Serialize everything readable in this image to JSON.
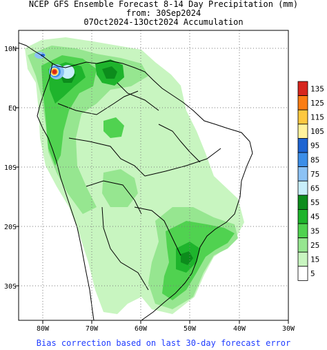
{
  "title": {
    "line1": "NCEP GFS Ensemble Forecast 8-14 Day Precipitation (mm)",
    "line2": "from: 30Sep2024",
    "line3": "07Oct2024-13Oct2024 Accumulation"
  },
  "axes": {
    "lat_labels": [
      "10N",
      "EQ",
      "10S",
      "20S",
      "30S"
    ],
    "lon_labels": [
      "80W",
      "70W",
      "60W",
      "50W",
      "40W",
      "30W"
    ],
    "lat_values": [
      10,
      0,
      -10,
      -20,
      -30
    ],
    "lon_values": [
      -80,
      -70,
      -60,
      -50,
      -40,
      -30
    ],
    "lon_range": [
      -85,
      -30
    ],
    "lat_range": [
      -36,
      13
    ],
    "grid": true
  },
  "legend": {
    "placement": "right",
    "levels": [
      {
        "label": "135",
        "color": "#d7261e"
      },
      {
        "label": "125",
        "color": "#fb7d14"
      },
      {
        "label": "115",
        "color": "#fdc840"
      },
      {
        "label": "105",
        "color": "#fff29c"
      },
      {
        "label": "95",
        "color": "#1e64d2"
      },
      {
        "label": "85",
        "color": "#3c8ee8"
      },
      {
        "label": "75",
        "color": "#8cc2f5"
      },
      {
        "label": "65",
        "color": "#c8eefa"
      },
      {
        "label": "55",
        "color": "#0c8c1c"
      },
      {
        "label": "45",
        "color": "#1eb42c"
      },
      {
        "label": "35",
        "color": "#50d250"
      },
      {
        "label": "25",
        "color": "#96e690"
      },
      {
        "label": "15",
        "color": "#c8f5c0"
      },
      {
        "label": "5",
        "color": "#ffffff"
      }
    ]
  },
  "footer": "Bias correction based on last 30-day forecast error"
}
